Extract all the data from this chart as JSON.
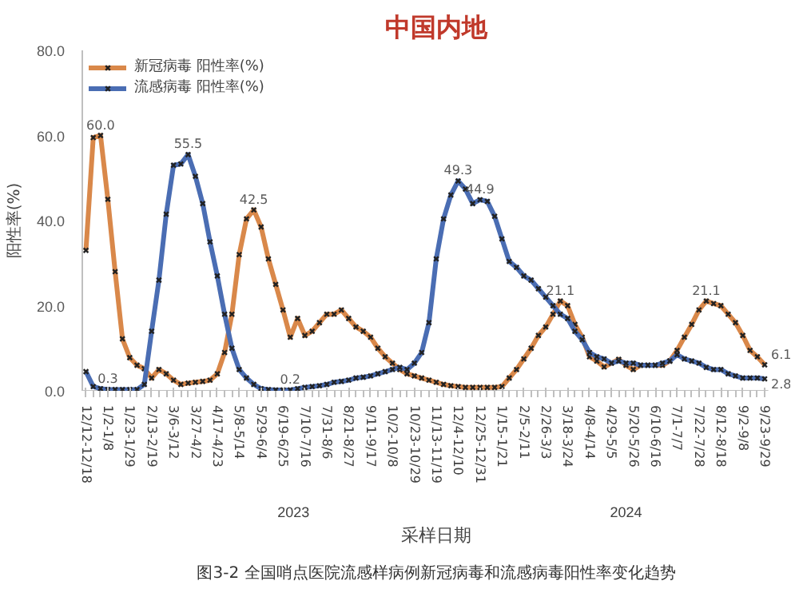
{
  "chart_data": {
    "type": "line",
    "title": "中国内地",
    "ylabel": "阳性率(%)",
    "xlabel": "采样日期",
    "categories": [
      "12/12-12/18",
      null,
      null,
      "1/2-1/8",
      null,
      null,
      "1/23-1/29",
      null,
      null,
      "2/13-2/19",
      null,
      null,
      "3/6-3/12",
      null,
      null,
      "3/27-4/2",
      null,
      null,
      "4/17-4/23",
      null,
      null,
      "5/8-5/14",
      null,
      null,
      "5/29-6/4",
      null,
      null,
      "6/19-6/25",
      null,
      null,
      "7/10-7/16",
      null,
      null,
      "7/31-8/6",
      null,
      null,
      "8/21-8/27",
      null,
      null,
      "9/11-9/17",
      null,
      null,
      "10/2-10/8",
      null,
      null,
      "10/23-10/29",
      null,
      null,
      "11/13-11/19",
      null,
      null,
      "12/4-12/10",
      null,
      null,
      "12/25-12/31",
      null,
      null,
      "1/15-1/21",
      null,
      null,
      "2/5-2/11",
      null,
      null,
      "2/26-3/3",
      null,
      null,
      "3/18-3/24",
      null,
      null,
      "4/8-4/14",
      null,
      null,
      "4/29-5/5",
      null,
      null,
      "5/20-5/26",
      null,
      null,
      "6/10-6/16",
      null,
      null,
      "7/1-7/7",
      null,
      null,
      "7/22-7/28",
      null,
      null,
      "8/12-8/18",
      null,
      null,
      "9/2-9/8",
      null,
      null,
      "9/23-9/29"
    ],
    "series": [
      {
        "name": "新冠病毒 阳性率(%)",
        "color": "#d9884a",
        "values": [
          33,
          59.5,
          60.0,
          45,
          28,
          12.2,
          7.8,
          6,
          5.2,
          3,
          5,
          4,
          2.5,
          1.5,
          1.8,
          2,
          2.2,
          2.5,
          4,
          9,
          18,
          32,
          40.4,
          42.5,
          38.5,
          31,
          25,
          19,
          12.6,
          17,
          13,
          14,
          16,
          18,
          18,
          19,
          17,
          15,
          14,
          12.6,
          10,
          8,
          6.5,
          5,
          4,
          3.5,
          3,
          2.5,
          2,
          1.5,
          1.2,
          1,
          0.8,
          0.8,
          0.8,
          0.8,
          0.8,
          1,
          3,
          5,
          7.5,
          10,
          13,
          15,
          18,
          21.1,
          20,
          15.6,
          12.6,
          8,
          7,
          5.6,
          6.5,
          7.4,
          6,
          5,
          6,
          6,
          6,
          6,
          7,
          9.5,
          12.6,
          15.6,
          19,
          21.1,
          20.5,
          20,
          18,
          16,
          13,
          9.5,
          8,
          6.1
        ],
        "value_labels": [
          null,
          null,
          "60.0",
          null,
          null,
          null,
          null,
          null,
          null,
          null,
          null,
          null,
          null,
          null,
          null,
          null,
          null,
          null,
          null,
          null,
          null,
          null,
          null,
          "42.5",
          null,
          null,
          null,
          null,
          null,
          null,
          null,
          null,
          null,
          null,
          null,
          null,
          null,
          null,
          null,
          null,
          null,
          null,
          null,
          null,
          null,
          null,
          null,
          null,
          null,
          null,
          null,
          null,
          null,
          null,
          null,
          null,
          null,
          null,
          null,
          null,
          null,
          null,
          null,
          null,
          null,
          "21.1",
          null,
          null,
          null,
          null,
          null,
          null,
          null,
          null,
          null,
          null,
          null,
          null,
          null,
          null,
          null,
          null,
          null,
          null,
          null,
          "21.1",
          null,
          null,
          null,
          null,
          null,
          null,
          null,
          "6.1"
        ]
      },
      {
        "name": "流感病毒 阳性率(%)",
        "color": "#4a6db3",
        "values": [
          4.5,
          1,
          0.5,
          0.3,
          0.3,
          0.3,
          0.3,
          0.3,
          1.5,
          14,
          26,
          41.5,
          53,
          53.3,
          55.5,
          50.4,
          44,
          35,
          27,
          18,
          10,
          5,
          3,
          1.5,
          0.5,
          0.3,
          0.2,
          0.2,
          0.2,
          0.5,
          0.8,
          1,
          1.2,
          1.5,
          2,
          2.2,
          2.5,
          3,
          3.2,
          3.5,
          4,
          4.5,
          5,
          5.5,
          5,
          6.5,
          9,
          16,
          31,
          40.4,
          46,
          49.3,
          47.4,
          44,
          44.9,
          44.5,
          41,
          35.7,
          30.4,
          29,
          27,
          26,
          24,
          22,
          20,
          18,
          17,
          14,
          12,
          9,
          8,
          7.5,
          6.5,
          7,
          6.5,
          6.5,
          6,
          6,
          6,
          6.5,
          7,
          8.5,
          7.5,
          7,
          6.5,
          5.5,
          5,
          5,
          4,
          3.5,
          3,
          3,
          3,
          2.8
        ],
        "value_labels": [
          null,
          null,
          null,
          "0.3",
          null,
          null,
          null,
          null,
          null,
          null,
          null,
          null,
          null,
          null,
          "55.5",
          null,
          null,
          null,
          null,
          null,
          null,
          null,
          null,
          null,
          null,
          null,
          null,
          null,
          "0.2",
          null,
          null,
          null,
          null,
          null,
          null,
          null,
          null,
          null,
          null,
          null,
          null,
          null,
          null,
          null,
          null,
          null,
          null,
          null,
          null,
          null,
          null,
          "49.3",
          null,
          null,
          "44.9",
          null,
          null,
          null,
          null,
          null,
          null,
          null,
          null,
          null,
          null,
          null,
          null,
          null,
          null,
          null,
          null,
          null,
          null,
          null,
          null,
          null,
          null,
          null,
          null,
          null,
          null,
          null,
          null,
          null,
          null,
          null,
          null,
          null,
          null,
          null,
          null,
          null,
          null,
          "2.8"
        ]
      }
    ],
    "ylim": [
      0,
      80
    ],
    "yticks": [
      {
        "value": 0,
        "label": "0.0"
      },
      {
        "value": 20,
        "label": "20.0"
      },
      {
        "value": 40,
        "label": "40.0"
      },
      {
        "value": 60,
        "label": "60.0"
      },
      {
        "value": 80,
        "label": "80.0"
      }
    ],
    "marker": "cross",
    "legend": "top left",
    "grid": false,
    "annotations": [
      "2023",
      "2024",
      "图3-2 全国哨点医院流感样病例新冠病毒和流感病毒阳性率变化趋势"
    ]
  }
}
